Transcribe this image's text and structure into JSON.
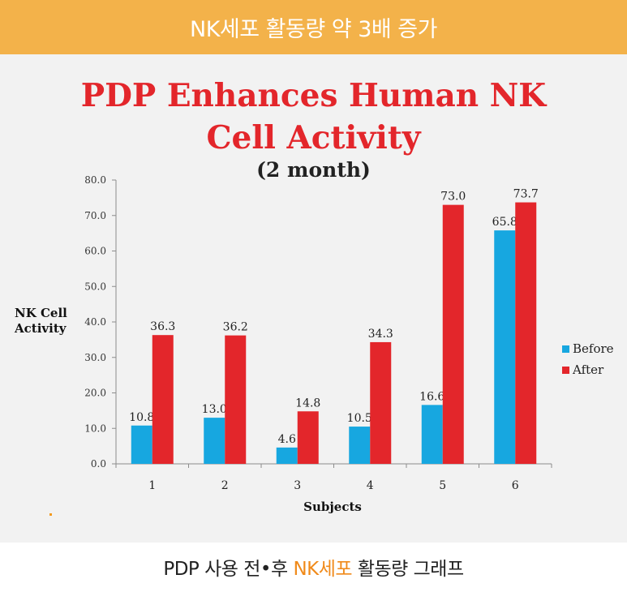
{
  "banner": {
    "text": "NK세포 활동량 약 3배 증가"
  },
  "caption": {
    "before": "PDP 사용 전•후 ",
    "accent": "NK세포",
    "after": " 활동량 그래프",
    "accent_color": "#f08a1a"
  },
  "colors": {
    "banner": "#f3b24a",
    "before": "#17a7e0",
    "after": "#e3262b",
    "title": "#e3262b"
  },
  "chart_data": {
    "type": "bar",
    "title": "PDP Enhances Human NK Cell Activity",
    "subtitle": "(2 month)",
    "xlabel": "Subjects",
    "ylabel": "NK Cell Activity",
    "categories": [
      "1",
      "2",
      "3",
      "4",
      "5",
      "6"
    ],
    "series": [
      {
        "name": "Before",
        "values": [
          10.8,
          13.0,
          4.6,
          10.5,
          16.6,
          65.8
        ],
        "labels": [
          "10.8",
          "13.0",
          "4.6",
          "10.5",
          "16.6",
          "65.8"
        ]
      },
      {
        "name": "After",
        "values": [
          36.3,
          36.2,
          14.8,
          34.3,
          73.0,
          73.7
        ],
        "labels": [
          "36.3",
          "36.2",
          "14.8",
          "34.3",
          "73.0",
          "73.7"
        ]
      }
    ],
    "ylim": [
      0,
      80
    ],
    "yticks": [
      "0.0",
      "10.0",
      "20.0",
      "30.0",
      "40.0",
      "50.0",
      "60.0",
      "70.0",
      "80.0"
    ],
    "grid": false,
    "legend_position": "right"
  }
}
